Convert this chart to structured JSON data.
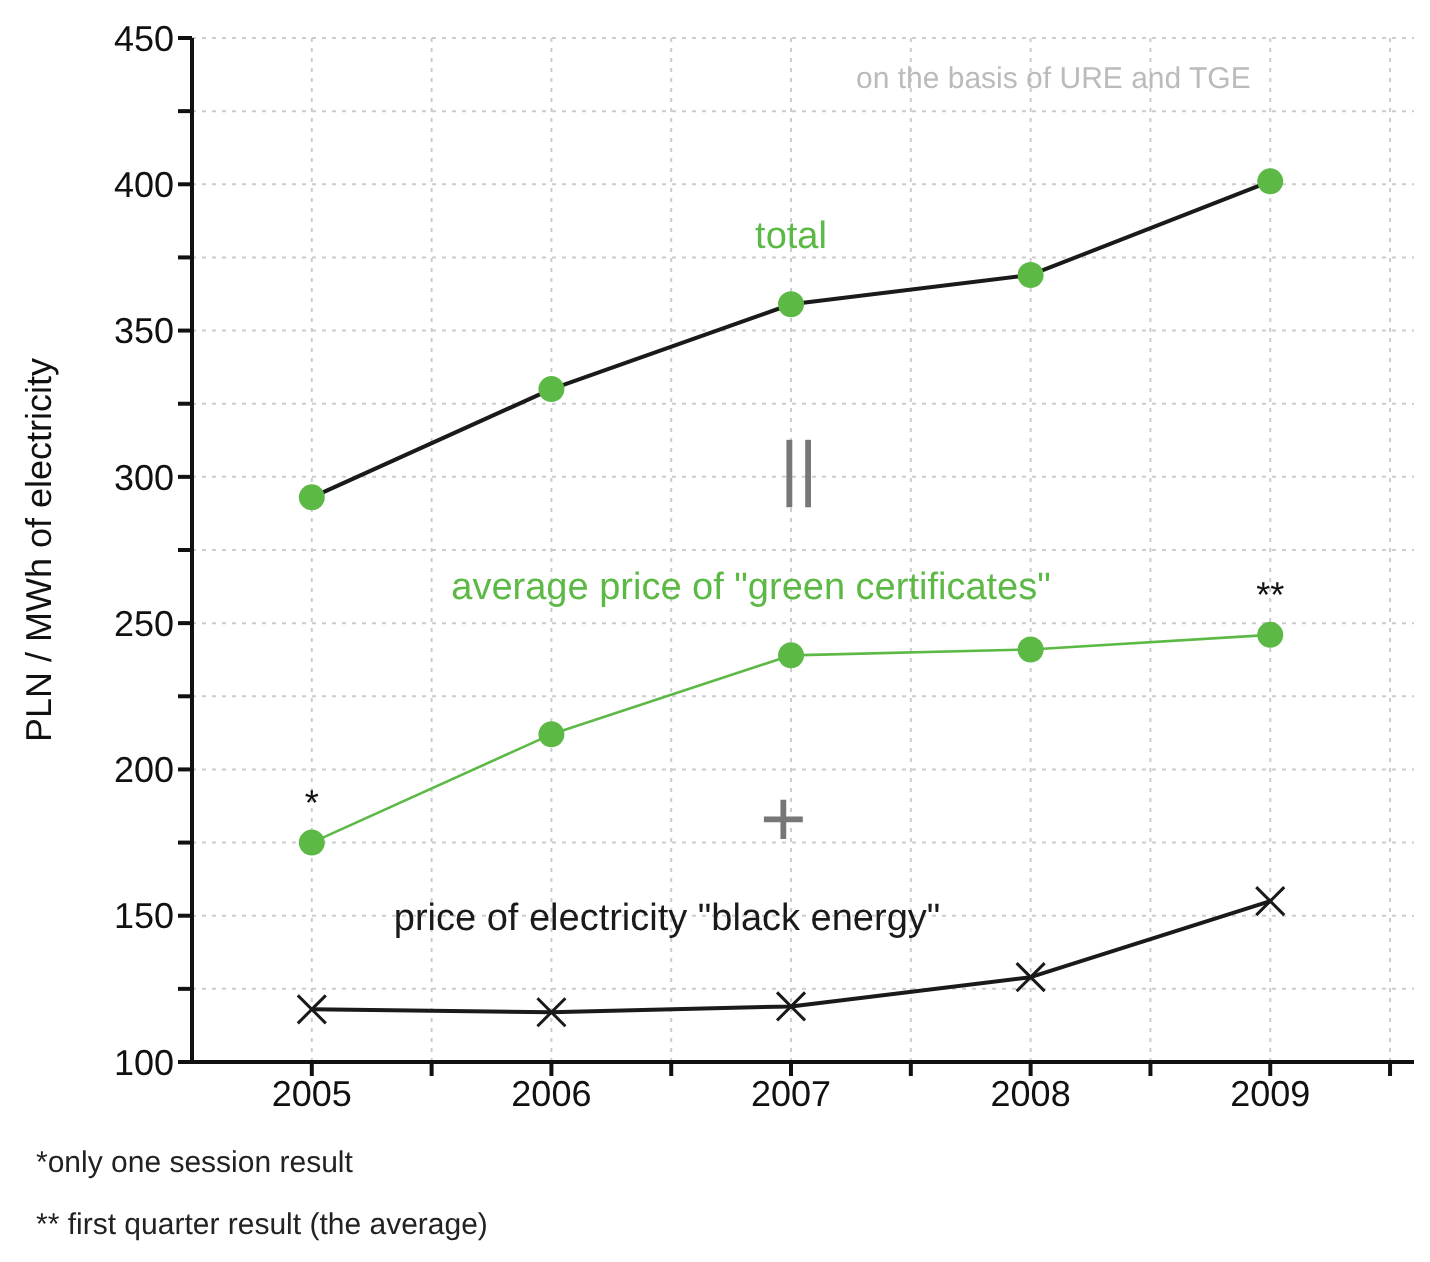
{
  "chart_data": {
    "type": "line",
    "ylabel": "PLN / MWh of electricity",
    "x": [
      2005,
      2006,
      2007,
      2008,
      2009
    ],
    "xlim": [
      2004.5,
      2009.6
    ],
    "xticks": [
      2005,
      {
        "value": 2005.5,
        "label": null
      },
      2006,
      {
        "value": 2006.5,
        "label": null
      },
      2007,
      {
        "value": 2007.5,
        "label": null
      },
      2008,
      {
        "value": 2008.5,
        "label": null
      },
      2009,
      {
        "value": 2009.5,
        "label": null
      }
    ],
    "ylim": [
      100,
      450
    ],
    "yticks": [
      100,
      {
        "value": 125,
        "label": null
      },
      150,
      {
        "value": 175,
        "label": null
      },
      200,
      {
        "value": 225,
        "label": null
      },
      250,
      {
        "value": 275,
        "label": null
      },
      300,
      {
        "value": 325,
        "label": null
      },
      350,
      {
        "value": 375,
        "label": null
      },
      400,
      {
        "value": 425,
        "label": null
      },
      450
    ],
    "grid": true,
    "series": [
      {
        "name": "total",
        "color": "#1a1a1a",
        "colors": [
          "#5cb946",
          "#5cb946",
          "#5cb946",
          "#5cb946",
          "#5cb946"
        ],
        "marker": "circle",
        "values": [
          293,
          330,
          359,
          369,
          401
        ]
      },
      {
        "name": "average price of \"green certificates\"",
        "color": "#5cb946",
        "marker": "circle",
        "values": [
          175,
          212,
          239,
          241,
          246
        ]
      },
      {
        "name": "price of electricity \"black energy\"",
        "color": "#1a1a1a",
        "marker": "cross",
        "values": [
          118,
          117,
          119,
          129,
          155
        ]
      }
    ],
    "annotations": [
      "on the basis of URE and TGE",
      "||",
      "+",
      {
        "text": "*",
        "x": 2005,
        "y": 175
      },
      {
        "text": "**",
        "x": 2009,
        "y": 246
      },
      "*only one session result",
      "** first quarter result (the average)"
    ]
  }
}
